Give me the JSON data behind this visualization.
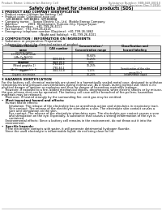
{
  "bg_color": "#ffffff",
  "header_left": "Product Name: Lithium Ion Battery Cell",
  "header_right_line1": "Substance Number: SBN-048-00010",
  "header_right_line2": "Established / Revision: Dec.7.2010",
  "title": "Safety data sheet for chemical products (SDS)",
  "section1_title": "1 PRODUCT AND COMPANY IDENTIFICATION",
  "section1_lines": [
    "•  Product name: Lithium Ion Battery Cell",
    "•  Product code: Cylindrical-type cell",
    "     SIR-BBBBU, SIR-BBBBL, SIR-BBBBA",
    "•  Company name:    Sanyo Electric Co., Ltd.  Mobile Energy Company",
    "•  Address:           2001  Kamitainairi, Sumoto-City, Hyogo, Japan",
    "•  Telephone number:   +81-799-26-4111",
    "•  Fax number:  +81-799-26-4121",
    "•  Emergency telephone number (Daytime): +81-799-26-3862",
    "                                          (Night and holiday): +81-799-26-4101"
  ],
  "section2_title": "2 COMPOSITION / INFORMATION ON INGREDIENTS",
  "section2_sub": "•  Substance or preparation: Preparation",
  "section2_sub2": "•  Information about the chemical nature of product",
  "table_headers": [
    "Common chemical\nname",
    "CAS number",
    "Concentration /\nConcentration range",
    "Classification and\nhazard labeling"
  ],
  "table_col1": [
    "Several name",
    "Lithium cobalt oxide\n(LiMn-Co-Ni)(O2)",
    "Iron",
    "Aluminum",
    "Graphite\n(Mixed graphite-1)\n(Air-No on graphite-1)",
    "Copper",
    "Organic electrolyte"
  ],
  "table_col2": [
    "",
    "",
    "7439-89-6",
    "7429-90-5",
    "7782-42-5\n7782-44-2",
    "7440-50-8",
    ""
  ],
  "table_col3": [
    "",
    "50-60%",
    "15-25%",
    "5-8%",
    "10-25%",
    "5-15%",
    "10-20%"
  ],
  "table_col4": [
    "",
    "",
    "-",
    "-",
    "-",
    "Sensitization of the skin\ngroup N=2",
    "Inflammable liquid"
  ],
  "section3_title": "3 HAZARDS IDENTIFICATION",
  "section3_lines": [
    "For the battery cell, chemical materials are stored in a hermetically sealed metal case, designed to withstand",
    "temperatures and pressure-concentrations during normal use. As a result, during normal use, there is no",
    "physical danger of ignition or explosion and thus no danger of hazardous materials leakage.",
    "    However, if exposed to a fire, added mechanical shocks, decomposed, when electric shocks or by misuse,",
    "the gas release vent can be operated. The battery cell case will be breached of fire-pollens, hazardous",
    "materials may be released.",
    "    Moreover, if heated strongly by the surrounding fire, emit gas may be emitted."
  ],
  "most_important": "•  Most important hazard and effects:",
  "health_label": "    Human health effects:",
  "inhalation": "        Inhalation: The release of the electrolyte has an anesthesia action and stimulates in respiratory tract.",
  "skin_line1": "        Skin contact: The release of the electrolyte stimulates a skin. The electrolyte skin contact causes a",
  "skin_line2": "        sore and stimulation on the skin.",
  "eye_line1": "        Eye contact: The release of the electrolyte stimulates eyes. The electrolyte eye contact causes a sore",
  "eye_line2": "        and stimulation on the eye. Especially, a substance that causes a strong inflammation of the eye is",
  "eye_line3": "        contained.",
  "env_line1": "    Environmental effects: Since a battery cell remains in the environment, do not throw out it into the",
  "env_line2": "    environment.",
  "specific": "•  Specific hazards:",
  "specific_line1": "    If the electrolyte contacts with water, it will generate detrimental hydrogen fluoride.",
  "specific_line2": "    Since the used electrolyte is inflammable liquid, do not bring close to fire."
}
